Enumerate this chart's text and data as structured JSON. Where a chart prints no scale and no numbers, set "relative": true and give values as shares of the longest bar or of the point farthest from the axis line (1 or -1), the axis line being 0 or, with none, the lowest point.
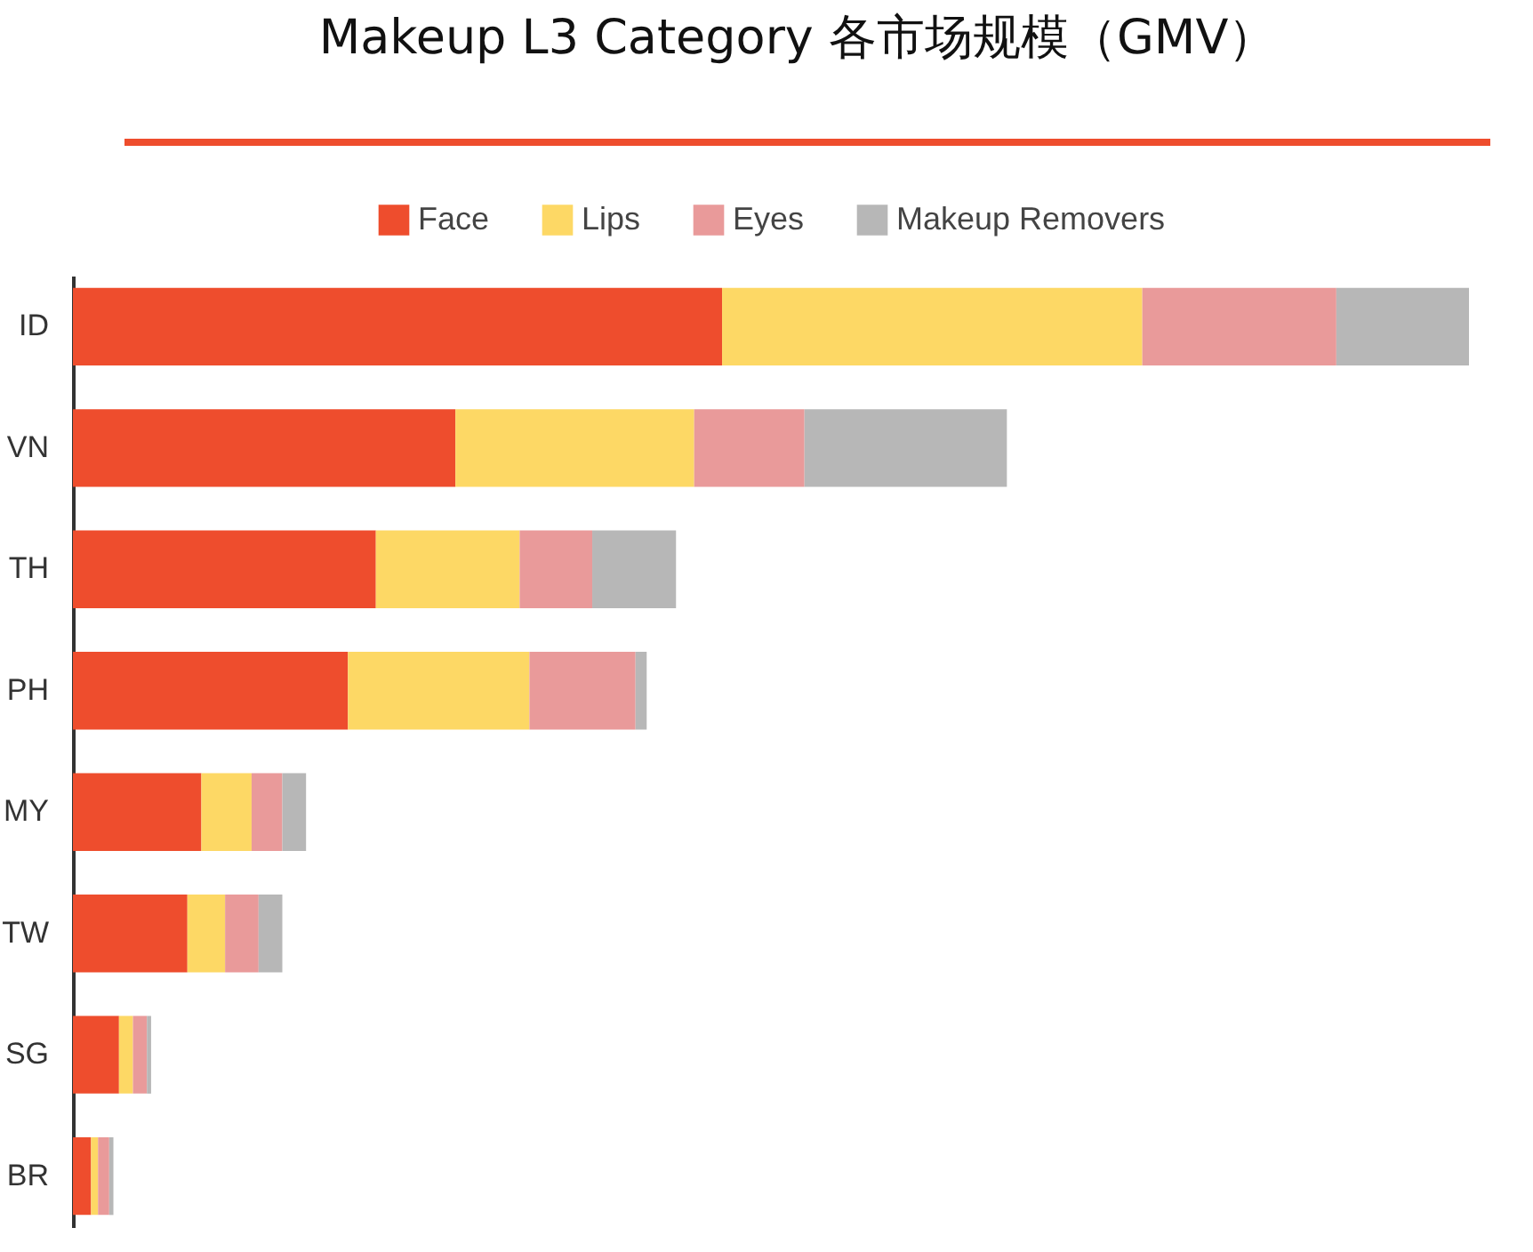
{
  "chart_data": {
    "type": "bar",
    "title": "Makeup L3 Category 各市场规模（GMV）",
    "orientation": "horizontal",
    "stacked": true,
    "relative": true,
    "legend": "top",
    "categories": [
      "ID",
      "VN",
      "TH",
      "PH",
      "MY",
      "TW",
      "SG",
      "BR"
    ],
    "series": [
      {
        "name": "Face",
        "color": "#ee4d2d",
        "values": [
          0.465,
          0.274,
          0.217,
          0.197,
          0.092,
          0.082,
          0.033,
          0.013
        ]
      },
      {
        "name": "Lips",
        "color": "#fdd865",
        "values": [
          0.301,
          0.171,
          0.103,
          0.13,
          0.036,
          0.027,
          0.01,
          0.005
        ]
      },
      {
        "name": "Eyes",
        "color": "#e99a9a",
        "values": [
          0.139,
          0.079,
          0.052,
          0.076,
          0.022,
          0.024,
          0.01,
          0.008
        ]
      },
      {
        "name": "Makeup Removers",
        "color": "#b7b7b7",
        "values": [
          0.095,
          0.145,
          0.06,
          0.008,
          0.017,
          0.017,
          0.003,
          0.003
        ]
      }
    ]
  }
}
